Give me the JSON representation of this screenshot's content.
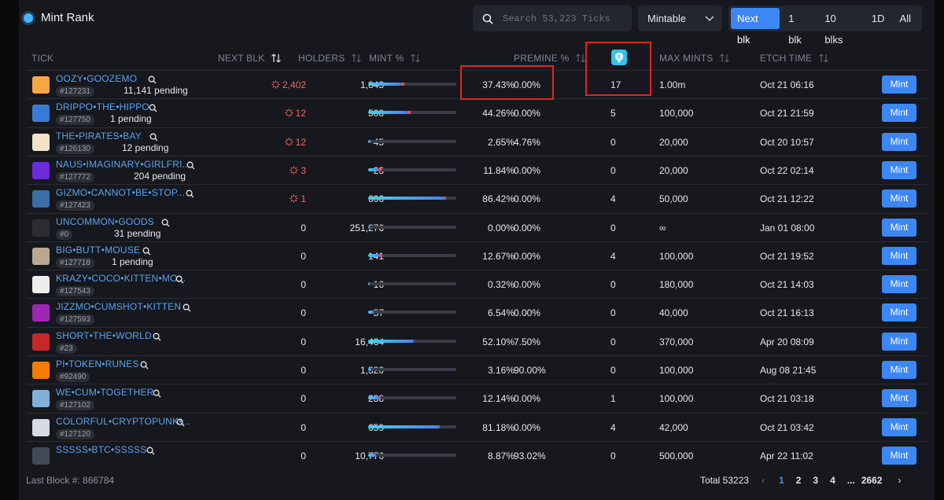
{
  "header": {
    "title": "Mint Rank",
    "search_placeholder": "Search 53,223 Ticks",
    "filter_value": "Mintable",
    "ranges": [
      "Next blk",
      "1 blk",
      "10 blks",
      "1D",
      "All"
    ],
    "active_range": "Next blk"
  },
  "columns": {
    "tick": "TICK",
    "next_blk": "NEXT BLK",
    "holders": "HOLDERS",
    "mint_pct": "MINT %",
    "premine": "PREMINE %",
    "max_mints": "MAX MINTS",
    "etch_time": "ETCH TIME"
  },
  "mint_label": "Mint",
  "colors": {
    "accent": "#3d87f5",
    "link": "#5aa3f0",
    "hot": "#f06a60",
    "highlight": "#e52323"
  },
  "rows": [
    {
      "name": "OOZY•GOOZEMO",
      "num": "#127231",
      "pending": "11,141 pending",
      "next_blk": "2,402",
      "hot": true,
      "holders": "1,843",
      "mint_pct": "37.43%",
      "mint_frac": 0.3743,
      "red_frac": 0.04,
      "premine": "0.00%",
      "next_col": "17",
      "max_mints": "1.00m",
      "etch": "Oct 21 06:16"
    },
    {
      "name": "DRIPPO•THE•HIPPO",
      "num": "#127750",
      "pending": "1 pending",
      "next_blk": "12",
      "hot": true,
      "holders": "508",
      "mint_pct": "44.26%",
      "mint_frac": 0.4426,
      "red_frac": 0.04,
      "premine": "0.00%",
      "next_col": "5",
      "max_mints": "100,000",
      "etch": "Oct 21 21:59"
    },
    {
      "name": "THE•PIRATES•BAY",
      "num": "#126130",
      "pending": "12 pending",
      "next_blk": "12",
      "hot": true,
      "holders": "45",
      "mint_pct": "2.65%",
      "mint_frac": 0.0265,
      "red_frac": 0,
      "premine": "4.76%",
      "next_col": "0",
      "max_mints": "20,000",
      "etch": "Oct 20 10:57"
    },
    {
      "name": "NAUS•IMAGINARY•GIRLFRI...",
      "num": "#127772",
      "pending": "204 pending",
      "next_blk": "3",
      "hot": true,
      "holders": "23",
      "mint_pct": "11.84%",
      "mint_frac": 0.1184,
      "red_frac": 0.03,
      "premine": "0.00%",
      "next_col": "0",
      "max_mints": "20,000",
      "etch": "Oct 22 02:14"
    },
    {
      "name": "GIZMO•CANNOT•BE•STOP...",
      "num": "#127423",
      "pending": "",
      "next_blk": "1",
      "hot": true,
      "holders": "606",
      "mint_pct": "86.42%",
      "mint_frac": 0.8642,
      "red_frac": 0.02,
      "premine": "0.00%",
      "next_col": "4",
      "max_mints": "50,000",
      "etch": "Oct 21 12:22"
    },
    {
      "name": "UNCOMMON•GOODS",
      "num": "#0",
      "pending": "31 pending",
      "next_blk": "0",
      "hot": false,
      "holders": "251,276",
      "mint_pct": "0.00%",
      "mint_frac": 0,
      "red_frac": 0,
      "premine": "0.00%",
      "next_col": "0",
      "max_mints": "∞",
      "etch": "Jan 01 08:00"
    },
    {
      "name": "BIG•BUTT•MOUSE",
      "num": "#127718",
      "pending": "1 pending",
      "next_blk": "0",
      "hot": false,
      "holders": "141",
      "mint_pct": "12.67%",
      "mint_frac": 0.1267,
      "red_frac": 0.03,
      "premine": "0.00%",
      "next_col": "4",
      "max_mints": "100,000",
      "etch": "Oct 21 19:52"
    },
    {
      "name": "KRAZY•COCO•KITTEN•MO...",
      "num": "#127543",
      "pending": "",
      "next_blk": "0",
      "hot": false,
      "holders": "16",
      "mint_pct": "0.32%",
      "mint_frac": 0.0032,
      "red_frac": 0,
      "premine": "0.00%",
      "next_col": "0",
      "max_mints": "180,000",
      "etch": "Oct 21 14:03"
    },
    {
      "name": "JIZZMO•CUMSHOT•KITTEN",
      "num": "#127593",
      "pending": "",
      "next_blk": "0",
      "hot": false,
      "holders": "57",
      "mint_pct": "6.54%",
      "mint_frac": 0.0654,
      "red_frac": 0,
      "premine": "0.00%",
      "next_col": "0",
      "max_mints": "40,000",
      "etch": "Oct 21 16:13"
    },
    {
      "name": "SHORT•THE•WORLD",
      "num": "#23",
      "pending": "",
      "next_blk": "0",
      "hot": false,
      "holders": "16,464",
      "mint_pct": "52.10%",
      "mint_frac": 0.521,
      "red_frac": 0,
      "premine": "7.50%",
      "next_col": "0",
      "max_mints": "370,000",
      "etch": "Apr 20 08:09"
    },
    {
      "name": "PI•TOKEN•RUNES",
      "num": "#92490",
      "pending": "",
      "next_blk": "0",
      "hot": false,
      "holders": "1,320",
      "mint_pct": "3.16%",
      "mint_frac": 0.0316,
      "red_frac": 0,
      "premine": "90.00%",
      "next_col": "0",
      "max_mints": "100,000",
      "etch": "Aug 08 21:45"
    },
    {
      "name": "WE•CUM•TOGETHER",
      "num": "#127102",
      "pending": "",
      "next_blk": "0",
      "hot": false,
      "holders": "238",
      "mint_pct": "12.14%",
      "mint_frac": 0.1214,
      "red_frac": 0.02,
      "premine": "0.00%",
      "next_col": "1",
      "max_mints": "100,000",
      "etch": "Oct 21 03:18"
    },
    {
      "name": "COLORFUL•CRYPTOPUNK•...",
      "num": "#127120",
      "pending": "",
      "next_blk": "0",
      "hot": false,
      "holders": "659",
      "mint_pct": "81.18%",
      "mint_frac": 0.8118,
      "red_frac": 0,
      "premine": "0.00%",
      "next_col": "4",
      "max_mints": "42,000",
      "etch": "Oct 21 03:42"
    },
    {
      "name": "SSSSS•BTC•SSSSS",
      "num": "",
      "pending": "",
      "next_blk": "0",
      "hot": false,
      "holders": "10,776",
      "mint_pct": "8.87%",
      "mint_frac": 0.0887,
      "red_frac": 0,
      "premine": "93.02%",
      "next_col": "0",
      "max_mints": "500,000",
      "etch": "Apr 22 11:02"
    }
  ],
  "footer": {
    "last_block": "Last Block #: 866784",
    "total": "Total 53223",
    "pages": [
      "1",
      "2",
      "3",
      "4",
      "...",
      "2662"
    ],
    "active_page": "1"
  }
}
